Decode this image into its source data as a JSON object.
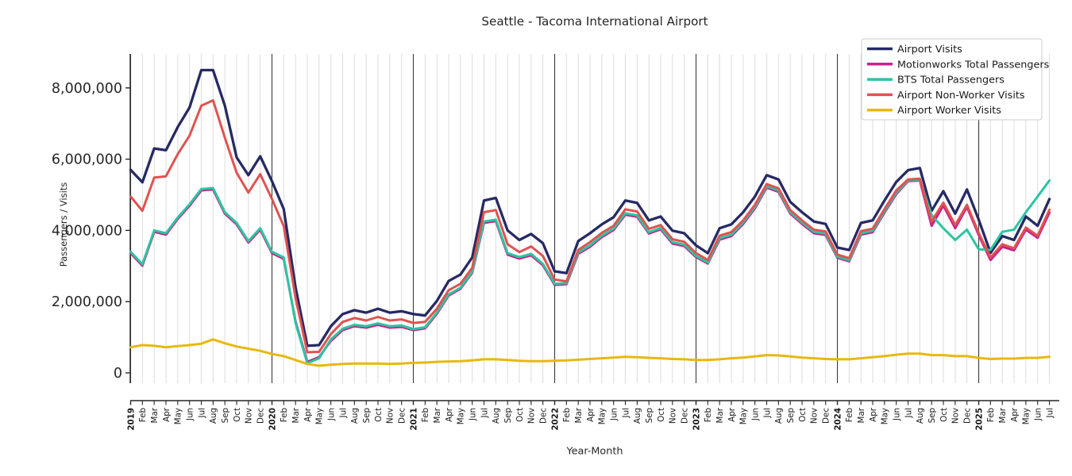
{
  "chart_data": {
    "type": "line",
    "title": "Seattle - Tacoma International Airport",
    "xlabel": "Year-Month",
    "ylabel": "Passengers / Visits",
    "units": "millions",
    "grid": "vertical gridline per month, dark line at each January",
    "legend_position": "upper right",
    "ylim": [
      -0.3,
      8.95
    ],
    "y_ticks": [
      {
        "value": 0,
        "label": "0"
      },
      {
        "value": 2,
        "label": "2,000,000"
      },
      {
        "value": 4,
        "label": "4,000,000"
      },
      {
        "value": 6,
        "label": "6,000,000"
      },
      {
        "value": 8,
        "label": "8,000,000"
      }
    ],
    "x_labels": [
      "2019",
      "Feb",
      "Mar",
      "Apr",
      "May",
      "Jun",
      "Jul",
      "Aug",
      "Sep",
      "Oct",
      "Nov",
      "Dec",
      "2020",
      "Feb",
      "Mar",
      "Apr",
      "May",
      "Jun",
      "Jul",
      "Aug",
      "Sep",
      "Oct",
      "Nov",
      "Dec",
      "2021",
      "Feb",
      "Mar",
      "Apr",
      "May",
      "Jun",
      "Jul",
      "Aug",
      "Sep",
      "Oct",
      "Nov",
      "Dec",
      "2022",
      "Feb",
      "Mar",
      "Apr",
      "May",
      "Jun",
      "Jul",
      "Aug",
      "Sep",
      "Oct",
      "Nov",
      "Dec",
      "2023",
      "Feb",
      "Mar",
      "Apr",
      "May",
      "Jun",
      "Jul",
      "Aug",
      "Sep",
      "Oct",
      "Nov",
      "Dec",
      "2024",
      "Feb",
      "Mar",
      "Apr",
      "May",
      "Jun",
      "Jul",
      "Aug",
      "Sep",
      "Oct",
      "Nov",
      "Dec",
      "2025",
      "Feb",
      "Mar",
      "Apr",
      "May",
      "Jun",
      "Jul"
    ],
    "series": [
      {
        "name": "Airport Visits",
        "color": "#262a63",
        "values": [
          5.7,
          5.35,
          6.3,
          6.25,
          6.9,
          7.45,
          8.5,
          8.5,
          7.5,
          6.05,
          5.55,
          6.08,
          5.38,
          4.6,
          2.4,
          0.76,
          0.78,
          1.31,
          1.65,
          1.76,
          1.69,
          1.8,
          1.69,
          1.73,
          1.65,
          1.61,
          2.02,
          2.58,
          2.76,
          3.24,
          4.84,
          4.91,
          4.0,
          3.73,
          3.9,
          3.64,
          2.85,
          2.8,
          3.7,
          3.92,
          4.17,
          4.37,
          4.84,
          4.77,
          4.28,
          4.39,
          3.99,
          3.92,
          3.58,
          3.36,
          4.06,
          4.17,
          4.51,
          4.95,
          5.55,
          5.43,
          4.8,
          4.51,
          4.25,
          4.18,
          3.52,
          3.45,
          4.21,
          4.28,
          4.84,
          5.36,
          5.69,
          5.75,
          4.55,
          5.1,
          4.47,
          5.15,
          4.3,
          3.37,
          3.84,
          3.73,
          4.39,
          4.13,
          4.88
        ]
      },
      {
        "name": "Motionworks Total Passengers",
        "color": "#c9218c",
        "values": [
          3.36,
          3.01,
          3.96,
          3.88,
          4.32,
          4.69,
          5.12,
          5.15,
          4.47,
          4.17,
          3.66,
          4.02,
          3.36,
          3.2,
          1.44,
          0.31,
          0.44,
          0.9,
          1.2,
          1.31,
          1.27,
          1.35,
          1.27,
          1.29,
          1.2,
          1.25,
          1.66,
          2.17,
          2.36,
          2.81,
          4.21,
          4.26,
          3.32,
          3.21,
          3.3,
          3.02,
          2.47,
          2.49,
          3.34,
          3.54,
          3.81,
          4.01,
          4.44,
          4.38,
          3.91,
          4.03,
          3.63,
          3.56,
          3.25,
          3.07,
          3.74,
          3.84,
          4.18,
          4.62,
          5.2,
          5.08,
          4.47,
          4.18,
          3.92,
          3.87,
          3.23,
          3.13,
          3.88,
          3.95,
          4.5,
          5.02,
          5.38,
          5.4,
          4.13,
          4.7,
          4.06,
          4.66,
          3.87,
          3.17,
          3.54,
          3.44,
          4.02,
          3.79,
          4.5
        ]
      },
      {
        "name": "BTS Total Passengers",
        "color": "#2cc5a2",
        "values": [
          3.4,
          3.05,
          4.0,
          3.92,
          4.36,
          4.73,
          5.16,
          5.19,
          4.51,
          4.21,
          3.7,
          4.06,
          3.4,
          3.24,
          1.4,
          0.27,
          0.41,
          0.94,
          1.24,
          1.35,
          1.31,
          1.39,
          1.31,
          1.33,
          1.23,
          1.28,
          1.69,
          2.2,
          2.39,
          2.84,
          4.25,
          4.3,
          3.36,
          3.25,
          3.34,
          3.06,
          2.5,
          2.52,
          3.38,
          3.58,
          3.85,
          4.05,
          4.48,
          4.42,
          3.95,
          4.07,
          3.67,
          3.6,
          3.28,
          3.1,
          3.78,
          3.88,
          4.22,
          4.66,
          5.24,
          5.12,
          4.51,
          4.22,
          3.96,
          3.91,
          3.26,
          3.16,
          3.92,
          3.99,
          4.54,
          5.06,
          5.4,
          5.42,
          4.43,
          4.06,
          3.73,
          4.02,
          3.47,
          3.45,
          3.96,
          4.02,
          4.51,
          4.95,
          5.4
        ]
      },
      {
        "name": "Airport Non-Worker Visits",
        "color": "#df5350",
        "values": [
          4.95,
          4.55,
          5.48,
          5.52,
          6.14,
          6.66,
          7.5,
          7.65,
          6.6,
          5.62,
          5.06,
          5.58,
          4.88,
          4.12,
          2.1,
          0.58,
          0.59,
          1.09,
          1.43,
          1.54,
          1.47,
          1.57,
          1.47,
          1.5,
          1.4,
          1.43,
          1.8,
          2.32,
          2.5,
          2.95,
          4.51,
          4.57,
          3.61,
          3.39,
          3.55,
          3.28,
          2.62,
          2.57,
          3.45,
          3.67,
          3.93,
          4.13,
          4.59,
          4.53,
          4.04,
          4.15,
          3.75,
          3.68,
          3.36,
          3.17,
          3.85,
          3.95,
          4.28,
          4.72,
          5.3,
          5.18,
          4.57,
          4.28,
          4.02,
          3.97,
          3.32,
          3.22,
          3.98,
          4.05,
          4.6,
          5.12,
          5.43,
          5.45,
          4.25,
          4.78,
          4.15,
          4.72,
          3.93,
          3.24,
          3.61,
          3.5,
          4.08,
          3.85,
          4.58
        ]
      },
      {
        "name": "Airport Worker Visits",
        "color": "#e8b80f",
        "values": [
          0.72,
          0.78,
          0.76,
          0.72,
          0.75,
          0.78,
          0.82,
          0.94,
          0.83,
          0.74,
          0.68,
          0.62,
          0.53,
          0.47,
          0.36,
          0.25,
          0.2,
          0.23,
          0.25,
          0.26,
          0.26,
          0.26,
          0.25,
          0.26,
          0.28,
          0.29,
          0.31,
          0.32,
          0.33,
          0.35,
          0.38,
          0.38,
          0.36,
          0.34,
          0.33,
          0.33,
          0.34,
          0.35,
          0.37,
          0.39,
          0.41,
          0.43,
          0.45,
          0.44,
          0.42,
          0.41,
          0.39,
          0.38,
          0.36,
          0.36,
          0.38,
          0.41,
          0.43,
          0.46,
          0.5,
          0.49,
          0.46,
          0.43,
          0.41,
          0.39,
          0.38,
          0.38,
          0.41,
          0.44,
          0.47,
          0.51,
          0.54,
          0.54,
          0.5,
          0.5,
          0.47,
          0.47,
          0.42,
          0.39,
          0.4,
          0.4,
          0.42,
          0.42,
          0.45
        ]
      }
    ]
  }
}
